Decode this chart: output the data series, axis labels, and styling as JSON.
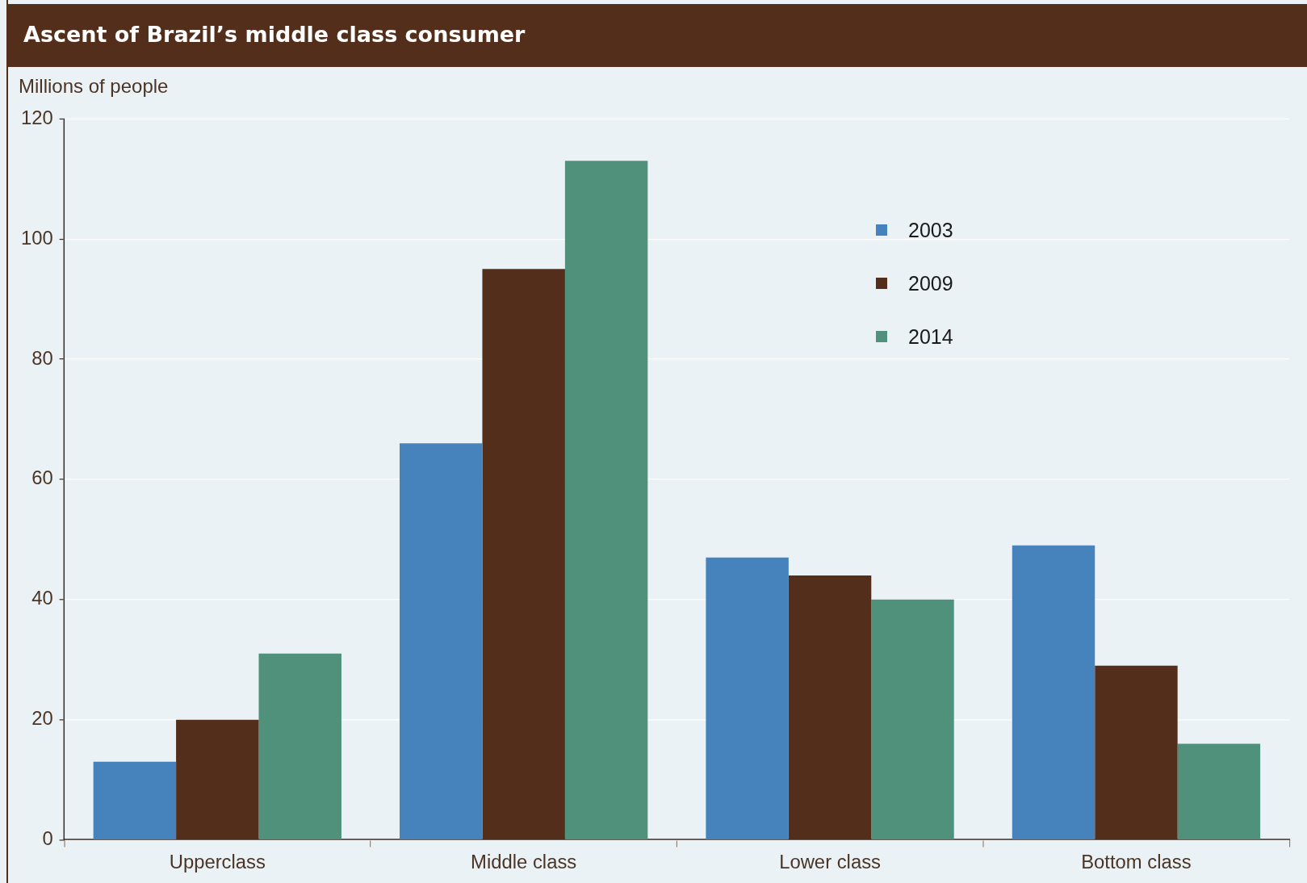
{
  "chart_data": {
    "type": "bar",
    "title": "Ascent of Brazil’s middle class consumer",
    "ylabel": "Millions of people",
    "categories": [
      "Upperclass",
      "Middle class",
      "Lower class",
      "Bottom class"
    ],
    "series": [
      {
        "name": "2003",
        "color": "#4682bb",
        "values": [
          13,
          66,
          47,
          49
        ]
      },
      {
        "name": "2009",
        "color": "#532f1b",
        "values": [
          20,
          95,
          44,
          29
        ]
      },
      {
        "name": "2014",
        "color": "#4f917a",
        "values": [
          31,
          113,
          40,
          16
        ]
      }
    ],
    "ylim": [
      0,
      120
    ],
    "yticks": [
      0,
      20,
      40,
      60,
      80,
      100,
      120
    ],
    "grid": "y",
    "legend": "top right"
  }
}
